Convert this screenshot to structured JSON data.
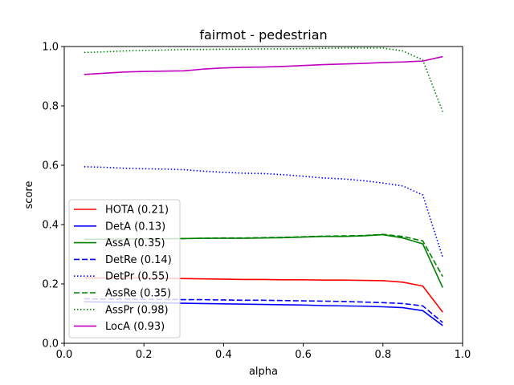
{
  "chart_data": {
    "type": "line",
    "title": "fairmot - pedestrian",
    "xlabel": "alpha",
    "ylabel": "score",
    "xlim": [
      0,
      1
    ],
    "ylim": [
      0,
      1
    ],
    "xticks": [
      "0.0",
      "0.2",
      "0.4",
      "0.6",
      "0.8",
      "1.0"
    ],
    "yticks": [
      "0.0",
      "0.2",
      "0.4",
      "0.6",
      "0.8",
      "1.0"
    ],
    "grid": false,
    "legend_position": "lower-left",
    "x": [
      0.05,
      0.1,
      0.15,
      0.2,
      0.25,
      0.3,
      0.35,
      0.4,
      0.45,
      0.5,
      0.55,
      0.6,
      0.65,
      0.7,
      0.75,
      0.8,
      0.85,
      0.9,
      0.95
    ],
    "series": [
      {
        "name": "HOTA (0.21)",
        "color": "#ff0000",
        "dash": "solid",
        "values": [
          0.22,
          0.22,
          0.22,
          0.22,
          0.219,
          0.218,
          0.217,
          0.216,
          0.215,
          0.215,
          0.214,
          0.214,
          0.213,
          0.213,
          0.212,
          0.211,
          0.206,
          0.193,
          0.105
        ]
      },
      {
        "name": "DetA (0.13)",
        "color": "#0000ff",
        "dash": "solid",
        "values": [
          0.14,
          0.139,
          0.138,
          0.137,
          0.136,
          0.135,
          0.134,
          0.133,
          0.132,
          0.131,
          0.13,
          0.129,
          0.127,
          0.126,
          0.125,
          0.123,
          0.12,
          0.11,
          0.06
        ]
      },
      {
        "name": "AssA (0.35)",
        "color": "#008000",
        "dash": "solid",
        "values": [
          0.35,
          0.351,
          0.351,
          0.352,
          0.352,
          0.353,
          0.354,
          0.354,
          0.354,
          0.355,
          0.356,
          0.358,
          0.36,
          0.36,
          0.362,
          0.366,
          0.355,
          0.335,
          0.188
        ]
      },
      {
        "name": "DetRe (0.14)",
        "color": "#0000ff",
        "dash": "dashed",
        "values": [
          0.15,
          0.149,
          0.149,
          0.148,
          0.148,
          0.147,
          0.147,
          0.146,
          0.145,
          0.145,
          0.144,
          0.143,
          0.142,
          0.141,
          0.139,
          0.137,
          0.134,
          0.126,
          0.07
        ]
      },
      {
        "name": "DetPr (0.55)",
        "color": "#0000ff",
        "dash": "dotted",
        "values": [
          0.595,
          0.593,
          0.59,
          0.588,
          0.587,
          0.585,
          0.58,
          0.576,
          0.573,
          0.572,
          0.568,
          0.563,
          0.557,
          0.554,
          0.548,
          0.54,
          0.53,
          0.5,
          0.29
        ]
      },
      {
        "name": "AssRe (0.35)",
        "color": "#008000",
        "dash": "dashed",
        "values": [
          0.35,
          0.351,
          0.351,
          0.352,
          0.352,
          0.353,
          0.354,
          0.355,
          0.355,
          0.356,
          0.357,
          0.359,
          0.361,
          0.362,
          0.363,
          0.367,
          0.36,
          0.345,
          0.225
        ]
      },
      {
        "name": "AssPr (0.98)",
        "color": "#008000",
        "dash": "dotted",
        "values": [
          0.98,
          0.982,
          0.985,
          0.987,
          0.988,
          0.99,
          0.99,
          0.991,
          0.991,
          0.992,
          0.992,
          0.993,
          0.994,
          0.995,
          0.995,
          0.995,
          0.985,
          0.955,
          0.78
        ]
      },
      {
        "name": "LocA (0.93)",
        "color": "#bf00bf",
        "dash": "solid",
        "values": [
          0.906,
          0.91,
          0.914,
          0.916,
          0.917,
          0.918,
          0.924,
          0.928,
          0.93,
          0.931,
          0.933,
          0.936,
          0.939,
          0.941,
          0.943,
          0.946,
          0.948,
          0.951,
          0.966
        ]
      }
    ]
  }
}
